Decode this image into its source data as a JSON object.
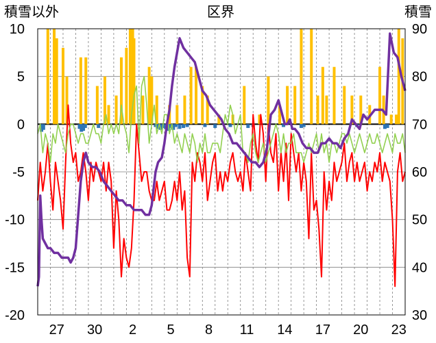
{
  "chart_data": {
    "type": "line",
    "title": "区界",
    "left_axis_label": "積雪以外",
    "right_axis_label": "積雪",
    "y_left": {
      "min": -20,
      "max": 10,
      "ticks": [
        10,
        5,
        0,
        -5,
        -10,
        -15,
        -20
      ]
    },
    "y_right": {
      "min": 30,
      "max": 90,
      "ticks": [
        90,
        80,
        70,
        60,
        50,
        40,
        30
      ]
    },
    "x_ticks": [
      "27",
      "30",
      "2",
      "5",
      "8",
      "11",
      "14",
      "17",
      "20",
      "23"
    ],
    "x_range": [
      0,
      29
    ],
    "x_tick_positions": [
      1.5,
      4.5,
      7.5,
      10.5,
      13.5,
      16.5,
      19.5,
      22.5,
      25.5,
      28.5
    ],
    "gridlines_x": [
      1,
      2,
      3,
      4,
      5,
      6,
      7,
      8,
      9,
      10,
      11,
      12,
      13,
      14,
      15,
      16,
      17,
      18,
      19,
      20,
      21,
      22,
      23,
      24,
      25,
      26,
      27,
      28
    ],
    "gridlines_y": [
      5,
      -5,
      -10,
      -15
    ],
    "zero_line": 0,
    "colors": {
      "precip": "#FFC000",
      "snowfall": "#2E75B6",
      "temperature": "#FF0000",
      "humidity_like": "#92D050",
      "snow_depth": "#7030A0",
      "axis": "#000000",
      "grid": "#7F7F7F"
    },
    "series": [
      {
        "key": "precip",
        "type": "bar",
        "axis": "left",
        "x": [
          0.8,
          1.3,
          1.5,
          2.0,
          2.3,
          3.4,
          3.8,
          4.7,
          5.3,
          5.6,
          6.2,
          6.6,
          7.0,
          7.3,
          7.5,
          7.6,
          8.3,
          8.8,
          9.0,
          9.4,
          10.4,
          11.0,
          11.6,
          12.1,
          12.5,
          13.0,
          13.4,
          14.3,
          15.4,
          16.3,
          17.5,
          18.2,
          19.1,
          19.7,
          20.3,
          20.8,
          21.6,
          22.1,
          22.5,
          22.8,
          23.4,
          24.2,
          24.8,
          25.5,
          26.2,
          27.0,
          27.3,
          27.9,
          28.3,
          28.5,
          28.8
        ],
        "values": [
          10,
          10,
          9,
          8,
          5,
          7,
          7,
          4,
          5,
          2,
          3,
          7,
          8,
          10,
          10,
          9,
          3,
          6,
          5,
          3,
          2,
          2,
          3,
          6,
          6,
          4,
          3,
          1,
          1,
          4,
          1,
          5,
          2,
          4,
          4,
          10,
          10,
          3,
          6,
          3,
          6,
          4,
          3,
          3,
          2,
          6,
          3,
          1,
          1,
          10,
          9
        ]
      },
      {
        "key": "snowfall",
        "type": "bar",
        "axis": "left",
        "x": [
          0.3,
          0.45,
          3.3,
          3.45,
          3.6,
          3.75,
          4.8,
          9.3,
          9.5,
          9.7,
          9.9,
          10.1,
          10.3,
          10.5,
          10.7,
          10.9,
          11.2,
          11.5,
          11.8,
          13.2,
          14.0,
          15.2,
          16.6,
          17.0,
          19.4,
          20.8,
          21.0,
          25.2,
          27.4,
          27.6
        ],
        "values": [
          -0.8,
          -0.6,
          -0.5,
          -0.8,
          -0.7,
          -0.4,
          -0.4,
          -0.3,
          -0.5,
          -0.6,
          -0.4,
          -0.5,
          -0.7,
          -0.4,
          -0.6,
          -0.3,
          -0.5,
          -0.4,
          -0.3,
          -0.3,
          -0.4,
          -0.3,
          -0.4,
          -0.3,
          -0.3,
          -0.4,
          -0.3,
          -0.3,
          -0.5,
          -0.4
        ]
      },
      {
        "key": "temperature",
        "type": "line",
        "axis": "left",
        "x": [
          0.0,
          0.2,
          0.4,
          0.6,
          0.8,
          1.0,
          1.2,
          1.4,
          1.6,
          1.8,
          2.0,
          2.2,
          2.4,
          2.6,
          2.8,
          3.0,
          3.2,
          3.4,
          3.6,
          3.8,
          4.0,
          4.2,
          4.4,
          4.6,
          4.8,
          5.0,
          5.2,
          5.4,
          5.6,
          5.8,
          6.0,
          6.2,
          6.4,
          6.6,
          6.8,
          7.0,
          7.2,
          7.4,
          7.6,
          7.8,
          8.0,
          8.2,
          8.4,
          8.6,
          8.8,
          9.0,
          9.2,
          9.4,
          9.6,
          9.8,
          10.0,
          10.2,
          10.4,
          10.6,
          10.8,
          11.0,
          11.2,
          11.4,
          11.6,
          11.8,
          12.0,
          12.2,
          12.4,
          12.6,
          12.8,
          13.0,
          13.2,
          13.4,
          13.6,
          13.8,
          14.0,
          14.2,
          14.4,
          14.6,
          14.8,
          15.0,
          15.2,
          15.4,
          15.6,
          15.8,
          16.0,
          16.2,
          16.4,
          16.6,
          16.8,
          17.0,
          17.2,
          17.4,
          17.6,
          17.8,
          18.0,
          18.2,
          18.4,
          18.6,
          18.8,
          19.0,
          19.2,
          19.4,
          19.6,
          19.8,
          20.0,
          20.2,
          20.4,
          20.6,
          20.8,
          21.0,
          21.2,
          21.4,
          21.6,
          21.8,
          22.0,
          22.2,
          22.4,
          22.6,
          22.8,
          23.0,
          23.2,
          23.4,
          23.6,
          23.8,
          24.0,
          24.2,
          24.4,
          24.6,
          24.8,
          25.0,
          25.2,
          25.4,
          25.6,
          25.8,
          26.0,
          26.2,
          26.4,
          26.6,
          26.8,
          27.0,
          27.2,
          27.4,
          27.6,
          27.8,
          28.0,
          28.2,
          28.4,
          28.6,
          28.8,
          29.0
        ],
        "values": [
          -8,
          -4,
          -7,
          -5,
          -2,
          -6,
          -9,
          -4,
          -6,
          -8,
          -11,
          -4,
          2,
          -2,
          -4,
          -3,
          -6,
          -5,
          -3,
          -5,
          -8,
          -4,
          -6,
          -4,
          -5,
          -6,
          -4,
          -7,
          -4,
          -6,
          -13,
          -7,
          -10,
          -16,
          -12,
          -14,
          -15,
          -13,
          -8,
          0,
          -3,
          -6,
          -5,
          -5,
          -7,
          -8,
          -8,
          -6,
          -8,
          -7,
          -6,
          -9,
          -9,
          -8,
          -6,
          -8,
          -5,
          -9,
          -7,
          -14,
          -16,
          -4,
          -6,
          -3,
          -4,
          -6,
          -3,
          -8,
          -6,
          -4,
          -3,
          -7,
          -5,
          -7,
          -5,
          -6,
          -4,
          -3,
          -5,
          -6,
          -5,
          -7,
          -3,
          -5,
          -7,
          1,
          -2,
          -4,
          1,
          -1,
          -6,
          0,
          -3,
          -4,
          -1,
          -7,
          -3,
          -6,
          -2,
          -8,
          -1,
          -3,
          -5,
          -3,
          -7,
          -4,
          -6,
          -12,
          -3,
          -9,
          -8,
          -11,
          -16,
          -5,
          -9,
          -6,
          -8,
          -4,
          -6,
          -5,
          -4,
          -2,
          -6,
          -4,
          -3,
          -6,
          -4,
          -6,
          -5,
          -4,
          -7,
          -5,
          -6,
          -4,
          -5,
          -3,
          -6,
          -4,
          -5,
          -6,
          -10,
          -17,
          -5,
          -3,
          -6,
          -5
        ]
      },
      {
        "key": "humidity_like",
        "type": "line",
        "axis": "left",
        "x": [
          0.0,
          0.2,
          0.4,
          0.6,
          0.8,
          1.0,
          1.2,
          1.4,
          1.6,
          1.8,
          2.0,
          2.2,
          2.4,
          2.6,
          2.8,
          3.0,
          3.2,
          3.4,
          3.6,
          3.8,
          4.0,
          4.2,
          4.4,
          4.6,
          4.8,
          5.0,
          5.2,
          5.4,
          5.6,
          5.8,
          6.0,
          6.2,
          6.4,
          6.6,
          6.8,
          7.0,
          7.2,
          7.4,
          7.6,
          7.8,
          8.0,
          8.2,
          8.4,
          8.6,
          8.8,
          9.0,
          9.2,
          9.4,
          9.6,
          9.8,
          10.0,
          10.2,
          10.4,
          10.6,
          10.8,
          11.0,
          11.2,
          11.4,
          11.6,
          11.8,
          12.0,
          12.2,
          12.4,
          12.6,
          12.8,
          13.0,
          13.2,
          13.4,
          13.6,
          13.8,
          14.0,
          14.2,
          14.4,
          14.6,
          14.8,
          15.0,
          15.2,
          15.4,
          15.6,
          15.8,
          16.0,
          16.2,
          16.4,
          16.6,
          16.8,
          17.0,
          17.2,
          17.4,
          17.6,
          17.8,
          18.0,
          18.2,
          18.4,
          18.6,
          18.8,
          19.0,
          19.2,
          19.4,
          19.6,
          19.8,
          20.0,
          20.2,
          20.4,
          20.6,
          20.8,
          21.0,
          21.2,
          21.4,
          21.6,
          21.8,
          22.0,
          22.2,
          22.4,
          22.6,
          22.8,
          23.0,
          23.2,
          23.4,
          23.6,
          23.8,
          24.0,
          24.2,
          24.4,
          24.6,
          24.8,
          25.0,
          25.2,
          25.4,
          25.6,
          25.8,
          26.0,
          26.2,
          26.4,
          26.6,
          26.8,
          27.0,
          27.2,
          27.4,
          27.6,
          27.8,
          28.0,
          28.2,
          28.4,
          28.6,
          28.8,
          29.0
        ],
        "values": [
          -1,
          0,
          -3,
          -1,
          -2,
          -4,
          -1,
          -2,
          0,
          -1,
          -2,
          -3,
          -1,
          0,
          0,
          -1,
          -2,
          -1,
          -1,
          -2,
          -2,
          -1,
          0,
          -1,
          -1,
          -2,
          0,
          1,
          -1,
          0,
          -1,
          0,
          -1,
          2,
          0,
          -1,
          -3,
          1,
          3,
          4,
          -2,
          4,
          5,
          2,
          -2,
          0,
          2,
          -1,
          0,
          -1,
          1,
          1,
          -1,
          0,
          -2,
          -1,
          -2,
          -3,
          -1,
          -2,
          -3,
          -1,
          -2,
          -4,
          -2,
          -3,
          -1,
          -3,
          -3,
          -2,
          -2,
          -2,
          -3,
          -1,
          1,
          0,
          2,
          1,
          -1,
          0,
          1,
          -3,
          -3,
          -4,
          -2,
          -1,
          -3,
          -4,
          -3,
          -2,
          -4,
          -3,
          -2,
          -1,
          0,
          -1,
          -3,
          -1,
          -3,
          -2,
          -2,
          -1,
          -3,
          -3,
          -3,
          -4,
          -3,
          -2,
          -3,
          -2,
          -1,
          -3,
          -1,
          -3,
          -2,
          -4,
          -2,
          -2,
          -3,
          -2,
          -1,
          -1,
          -2,
          -1,
          -2,
          -3,
          -2,
          -1,
          -2,
          -3,
          -2,
          -1,
          -2,
          -2,
          -1,
          -2,
          -3,
          -2,
          -1,
          -2,
          -3,
          -1,
          -2,
          -2,
          -1,
          -3
        ]
      },
      {
        "key": "snow_depth",
        "type": "line",
        "axis": "right",
        "x": [
          0.0,
          0.1,
          0.2,
          0.3,
          0.4,
          0.6,
          0.8,
          1.0,
          1.3,
          1.6,
          1.9,
          2.1,
          2.4,
          2.6,
          2.8,
          3.0,
          3.2,
          3.4,
          3.6,
          3.8,
          4.0,
          4.3,
          4.6,
          4.9,
          5.2,
          5.5,
          5.8,
          6.1,
          6.4,
          6.7,
          7.0,
          7.3,
          7.6,
          7.9,
          8.2,
          8.5,
          8.8,
          9.0,
          9.3,
          9.5,
          9.8,
          10.0,
          10.2,
          10.4,
          10.6,
          10.8,
          11.0,
          11.2,
          11.5,
          11.8,
          12.1,
          12.4,
          12.7,
          13.0,
          13.3,
          13.6,
          13.9,
          14.2,
          14.5,
          14.8,
          15.1,
          15.4,
          15.7,
          16.0,
          16.3,
          16.6,
          16.9,
          17.2,
          17.5,
          17.8,
          18.1,
          18.4,
          18.7,
          19.0,
          19.3,
          19.5,
          19.7,
          19.9,
          20.1,
          20.3,
          20.6,
          20.9,
          21.2,
          21.5,
          21.8,
          22.1,
          22.4,
          22.7,
          23.0,
          23.3,
          23.6,
          23.9,
          24.2,
          24.5,
          24.8,
          25.1,
          25.4,
          25.7,
          26.0,
          26.3,
          26.6,
          26.9,
          27.2,
          27.5,
          27.8,
          28.1,
          28.4,
          28.7,
          29.0
        ],
        "values": [
          36,
          38,
          55,
          50,
          46,
          45,
          44,
          44,
          43,
          43,
          42,
          42,
          42,
          41,
          42,
          44,
          51,
          58,
          62,
          64,
          62,
          61,
          61,
          60,
          58,
          57,
          56,
          55,
          54,
          54,
          53,
          53,
          52,
          52,
          52,
          51,
          51,
          53,
          60,
          62,
          63,
          66,
          70,
          73,
          78,
          82,
          85,
          88,
          86,
          85,
          84,
          83,
          80,
          77,
          76,
          74,
          73,
          72,
          71,
          69,
          68,
          66,
          66,
          65,
          64,
          63,
          62,
          62,
          61,
          62,
          65,
          72,
          73,
          75,
          72,
          70,
          70,
          71,
          69,
          69,
          68,
          66,
          65,
          65,
          64,
          64,
          66,
          66,
          67,
          66,
          66,
          65,
          67,
          68,
          71,
          70,
          69,
          72,
          71,
          72,
          73,
          73,
          73,
          72,
          89,
          85,
          84,
          80,
          77
        ]
      }
    ]
  }
}
